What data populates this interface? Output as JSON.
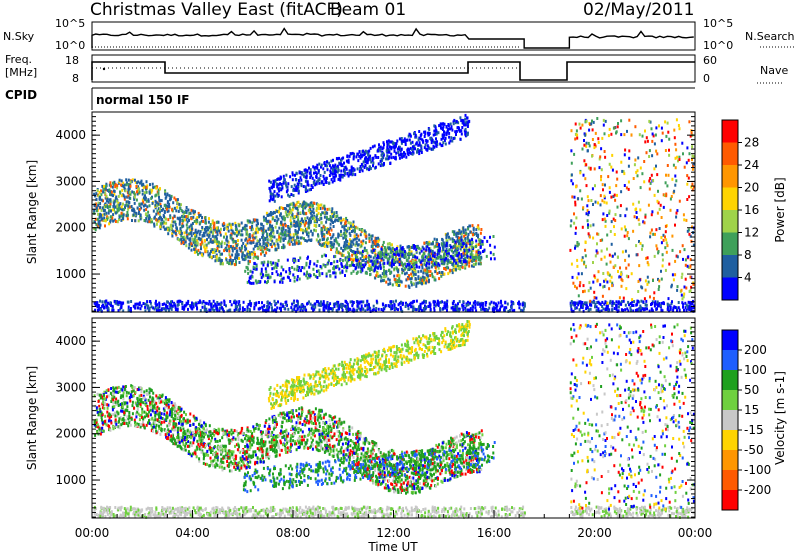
{
  "header": {
    "station_title": "Christmas Valley East (fitACF)",
    "beam_label": "Beam 01",
    "date": "02/May/2011"
  },
  "top_panels": {
    "nsky": {
      "left_label": "N.Sky",
      "left_ticks": [
        "10^5",
        "10^0"
      ],
      "right_label": "N.Search",
      "right_ticks": [
        "10^5",
        "10^0"
      ]
    },
    "freq": {
      "left_label_line1": "Freq.",
      "left_label_line2": "[MHz]",
      "left_ticks": [
        "18",
        "8"
      ],
      "right_label": "Nave",
      "right_ticks": [
        "60",
        "0"
      ]
    },
    "cpid": {
      "label": "CPID",
      "mode_text": "normal 150 IF"
    }
  },
  "chart_data": [
    {
      "type": "heatmap",
      "title": "",
      "ylabel": "Slant Range [km]",
      "xlabel": "",
      "ylim": [
        180,
        4500
      ],
      "xlim": [
        "00:00",
        "24:00"
      ],
      "y_ticks": [
        "1000",
        "2000",
        "3000",
        "4000"
      ],
      "colorbar": {
        "label": "Power [dB]",
        "ticks": [
          "28",
          "24",
          "20",
          "16",
          "12",
          "8",
          "4"
        ],
        "colors": [
          "#ff0000",
          "#ff5a00",
          "#ff9600",
          "#ffd400",
          "#9fd34a",
          "#3fa05a",
          "#1f5fa0",
          "#0000ff"
        ]
      },
      "data_gap_hours": [
        17.2,
        19.0
      ]
    },
    {
      "type": "heatmap",
      "title": "",
      "ylabel": "Slant Range [km]",
      "xlabel": "Time UT",
      "ylim": [
        180,
        4500
      ],
      "xlim": [
        "00:00",
        "24:00"
      ],
      "y_ticks": [
        "1000",
        "2000",
        "3000",
        "4000"
      ],
      "x_ticks": [
        "00:00",
        "04:00",
        "08:00",
        "12:00",
        "16:00",
        "20:00",
        "00:00"
      ],
      "colorbar": {
        "label": "Velocity [m s-1]",
        "ticks": [
          "200",
          "100",
          "50",
          "15",
          "-15",
          "-50",
          "-100",
          "-200"
        ],
        "colors": [
          "#0000ff",
          "#1f5fff",
          "#1fa01f",
          "#6fd03f",
          "#c8c8c8",
          "#ffd400",
          "#ff9600",
          "#ff5a00",
          "#ff0000"
        ]
      },
      "data_gap_hours": [
        17.2,
        19.0
      ]
    }
  ]
}
